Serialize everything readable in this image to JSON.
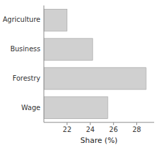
{
  "chart_data": {
    "type": "bar",
    "orientation": "horizontal",
    "xlabel": "Share (%)",
    "categories": [
      "Agriculture",
      "Business",
      "Forestry",
      "Wage"
    ],
    "values": [
      22.0,
      24.2,
      28.8,
      25.5
    ],
    "color": "#d0d0d0",
    "xlim": [
      20.0,
      29.5
    ],
    "xticks": [
      22,
      24,
      26,
      28
    ],
    "grid": false
  }
}
